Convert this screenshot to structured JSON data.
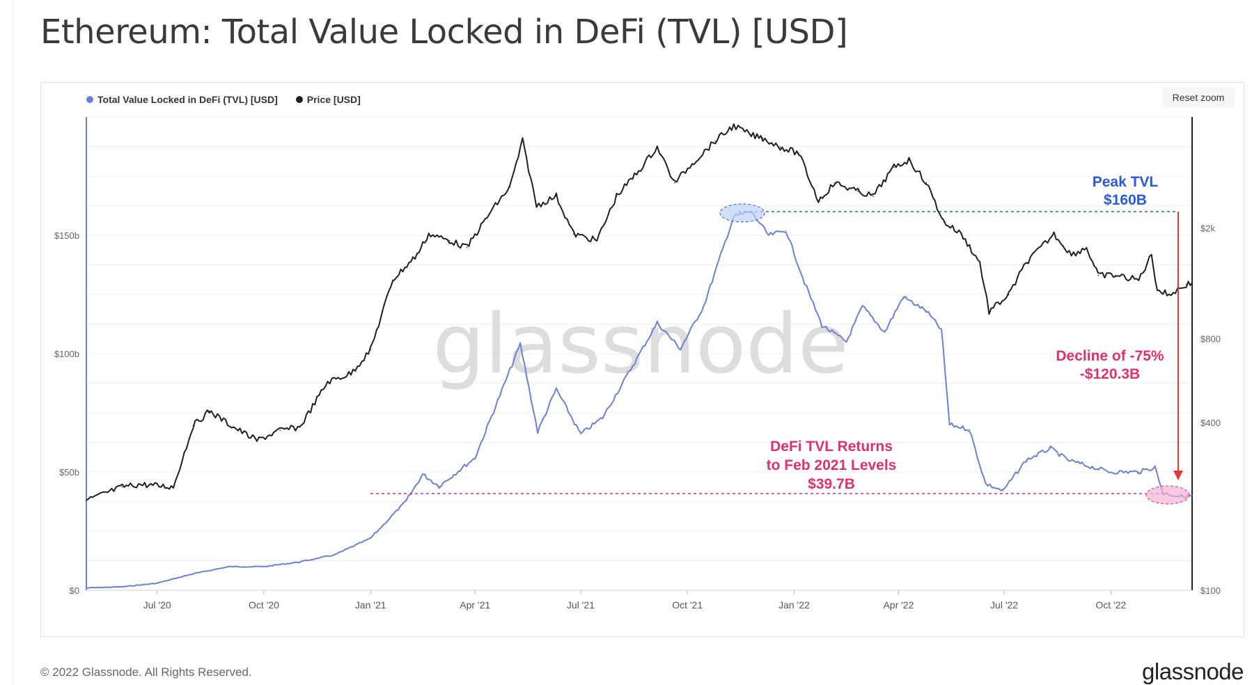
{
  "page": {
    "title": "Ethereum: Total Value Locked in DeFi (TVL) [USD]",
    "reset_zoom_label": "Reset zoom",
    "watermark": "glassnode",
    "footer_copyright": "© 2022 Glassnode. All Rights Reserved.",
    "footer_logo": "glassnode"
  },
  "colors": {
    "tvl": "#6a80d8",
    "price": "#1f1f1f",
    "peak_annotation": "#2a5bd7",
    "low_annotation": "#e0306e",
    "decline_arrow": "#e53935"
  },
  "annotations": {
    "peak_line1": "Peak TVL",
    "peak_line2": "$160B",
    "decline_line1": "Decline of -75%",
    "decline_line2": "-$120.3B",
    "low_line1": "DeFi TVL Returns",
    "low_line2": "to Feb 2021 Levels",
    "low_line3": "$39.7B"
  },
  "chart_data": {
    "type": "line",
    "title": "Ethereum: Total Value Locked in DeFi (TVL) [USD]",
    "x_tick_labels": [
      "Jul '20",
      "Oct '20",
      "Jan '21",
      "Apr '21",
      "Jul '21",
      "Oct '21",
      "Jan '22",
      "Apr '22",
      "Jul '22",
      "Oct '22"
    ],
    "y_left": {
      "tick_labels": [
        "$0",
        "$50b",
        "$100b",
        "$150b"
      ],
      "ticks": [
        0,
        50,
        100,
        150
      ],
      "unit": "billion USD",
      "range": [
        0,
        200
      ]
    },
    "y_right": {
      "tick_labels": [
        "$100",
        "$400",
        "$800",
        "$2k"
      ],
      "ticks": [
        100,
        400,
        800,
        2000
      ],
      "scale": "log",
      "range": [
        100,
        5000
      ]
    },
    "legend": {
      "position": "top-left",
      "items": [
        "Total Value Locked in DeFi (TVL) [USD]",
        "Price [USD]"
      ]
    },
    "grid": true,
    "series": [
      {
        "name": "Total Value Locked in DeFi (TVL) [USD]",
        "axis": "left",
        "x": [
          "2020-05-01",
          "2020-06-01",
          "2020-07-01",
          "2020-08-01",
          "2020-09-01",
          "2020-10-01",
          "2020-11-01",
          "2020-12-01",
          "2021-01-01",
          "2021-02-01",
          "2021-02-15",
          "2021-03-01",
          "2021-04-01",
          "2021-05-10",
          "2021-05-25",
          "2021-06-10",
          "2021-07-01",
          "2021-07-20",
          "2021-08-15",
          "2021-09-05",
          "2021-09-25",
          "2021-10-15",
          "2021-11-10",
          "2021-11-25",
          "2021-12-10",
          "2021-12-25",
          "2022-01-10",
          "2022-01-25",
          "2022-02-15",
          "2022-03-01",
          "2022-03-20",
          "2022-04-05",
          "2022-04-25",
          "2022-05-08",
          "2022-05-15",
          "2022-06-01",
          "2022-06-15",
          "2022-06-30",
          "2022-07-20",
          "2022-08-10",
          "2022-08-25",
          "2022-09-15",
          "2022-10-01",
          "2022-10-25",
          "2022-11-08",
          "2022-11-15",
          "2022-12-01",
          "2022-12-10"
        ],
        "y": [
          1,
          1.5,
          3,
          7,
          10,
          10,
          12,
          15,
          22,
          38,
          49,
          44,
          56,
          104,
          67,
          85,
          66,
          73,
          95,
          113,
          102,
          120,
          158,
          160,
          150,
          152,
          130,
          112,
          105,
          120,
          109,
          124,
          118,
          110,
          70,
          68,
          45,
          42,
          55,
          60,
          55,
          52,
          50,
          50,
          52,
          41,
          39.7,
          40
        ]
      },
      {
        "name": "Price [USD]",
        "axis": "right",
        "x": [
          "2020-05-01",
          "2020-06-01",
          "2020-06-15",
          "2020-07-15",
          "2020-08-01",
          "2020-08-15",
          "2020-09-05",
          "2020-09-25",
          "2020-10-15",
          "2020-11-01",
          "2020-11-25",
          "2020-12-15",
          "2021-01-01",
          "2021-01-20",
          "2021-02-10",
          "2021-02-20",
          "2021-03-10",
          "2021-03-25",
          "2021-04-15",
          "2021-05-01",
          "2021-05-12",
          "2021-05-24",
          "2021-06-10",
          "2021-06-25",
          "2021-07-15",
          "2021-08-01",
          "2021-08-20",
          "2021-09-05",
          "2021-09-20",
          "2021-10-05",
          "2021-10-25",
          "2021-11-10",
          "2021-11-25",
          "2021-12-05",
          "2021-12-20",
          "2022-01-05",
          "2022-01-22",
          "2022-02-05",
          "2022-02-25",
          "2022-03-10",
          "2022-03-28",
          "2022-04-10",
          "2022-04-25",
          "2022-05-10",
          "2022-05-25",
          "2022-06-10",
          "2022-06-18",
          "2022-07-05",
          "2022-07-20",
          "2022-08-13",
          "2022-08-28",
          "2022-09-10",
          "2022-09-20",
          "2022-10-05",
          "2022-10-25",
          "2022-11-05",
          "2022-11-10",
          "2022-11-20",
          "2022-12-05",
          "2022-12-10"
        ],
        "y": [
          210,
          235,
          240,
          235,
          390,
          440,
          385,
          345,
          375,
          385,
          560,
          600,
          730,
          1300,
          1600,
          1900,
          1800,
          1700,
          2300,
          2800,
          4100,
          2400,
          2600,
          1900,
          1800,
          2600,
          3200,
          3900,
          2900,
          3400,
          4100,
          4650,
          4300,
          4200,
          3900,
          3700,
          2500,
          2900,
          2700,
          2600,
          3300,
          3500,
          2900,
          2100,
          1900,
          1500,
          1000,
          1150,
          1500,
          1900,
          1600,
          1700,
          1350,
          1350,
          1300,
          1600,
          1200,
          1150,
          1250,
          1270
        ]
      }
    ]
  }
}
